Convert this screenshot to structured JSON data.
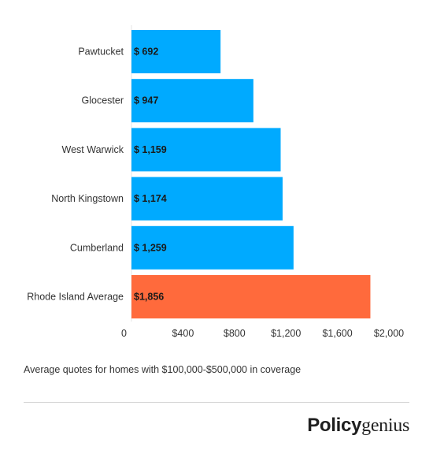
{
  "chart_data": {
    "type": "bar",
    "orientation": "horizontal",
    "categories": [
      "Pawtucket",
      "Glocester",
      "West Warwick",
      "North Kingstown",
      "Cumberland",
      "Rhode Island Average"
    ],
    "values": [
      692,
      947,
      1159,
      1174,
      1259,
      1856
    ],
    "value_labels": [
      "$ 692",
      "$ 947",
      "$ 1,159",
      "$ 1,174",
      "$ 1,259",
      "$1,856"
    ],
    "bar_colors": [
      "#00aaff",
      "#00aaff",
      "#00aaff",
      "#00aaff",
      "#00aaff",
      "#ff6a3c"
    ],
    "xlim": [
      0,
      2000
    ],
    "xticks": [
      0,
      400,
      800,
      1200,
      1600,
      2000
    ],
    "xtick_labels": [
      "0",
      "$400",
      "$800",
      "$1,200",
      "$1,600",
      "$2,000"
    ],
    "title": "",
    "xlabel": "",
    "ylabel": "",
    "grid": false,
    "legend": "none"
  },
  "caption": "Average quotes for homes with $100,000-$500,000 in coverage",
  "brand": {
    "part1": "Policy",
    "part2": "genius"
  },
  "colors": {
    "bar_primary": "#00aaff",
    "bar_highlight": "#ff6a3c",
    "text": "#333333",
    "divider": "#d6d6d6"
  }
}
